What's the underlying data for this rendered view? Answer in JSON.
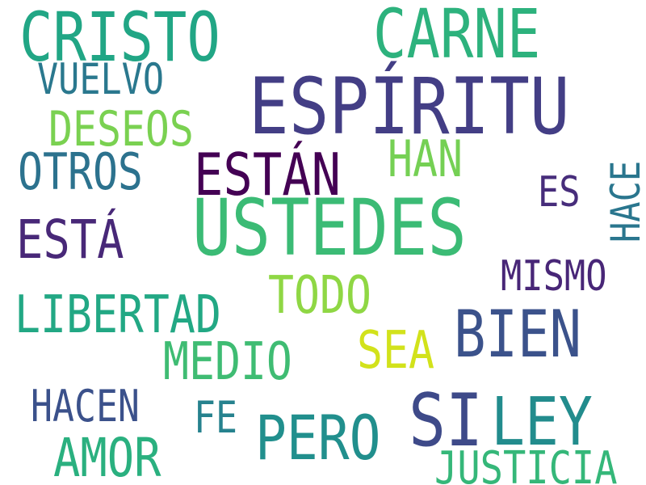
{
  "words": [
    {
      "text": "CRISTO",
      "color": "#21a685"
    },
    {
      "text": "CARNE",
      "color": "#2db27d"
    },
    {
      "text": "VUELVO",
      "color": "#2a788e"
    },
    {
      "text": "ESPÍRITU",
      "color": "#433e85"
    },
    {
      "text": "DESEOS",
      "color": "#7ad151"
    },
    {
      "text": "OTROS",
      "color": "#2c728e"
    },
    {
      "text": "ESTÁN",
      "color": "#440154"
    },
    {
      "text": "HAN",
      "color": "#75d054"
    },
    {
      "text": "HACE",
      "color": "#2a768e"
    },
    {
      "text": "ES",
      "color": "#472d7b"
    },
    {
      "text": "USTEDES",
      "color": "#3bbb75"
    },
    {
      "text": "ESTÁ",
      "color": "#482878"
    },
    {
      "text": "MISMO",
      "color": "#482677"
    },
    {
      "text": "TODO",
      "color": "#8fd744"
    },
    {
      "text": "LIBERTAD",
      "color": "#22a884"
    },
    {
      "text": "BIEN",
      "color": "#3b528b"
    },
    {
      "text": "SEA",
      "color": "#d2e21b"
    },
    {
      "text": "MEDIO",
      "color": "#3fbc73"
    },
    {
      "text": "HACEN",
      "color": "#3b518b"
    },
    {
      "text": "FE",
      "color": "#26828e"
    },
    {
      "text": "PERO",
      "color": "#218f8d"
    },
    {
      "text": "SI",
      "color": "#3e4a89"
    },
    {
      "text": "LEY",
      "color": "#228c8d"
    },
    {
      "text": "AMOR",
      "color": "#2ab07f"
    },
    {
      "text": "JUSTICIA",
      "color": "#35b779"
    }
  ]
}
